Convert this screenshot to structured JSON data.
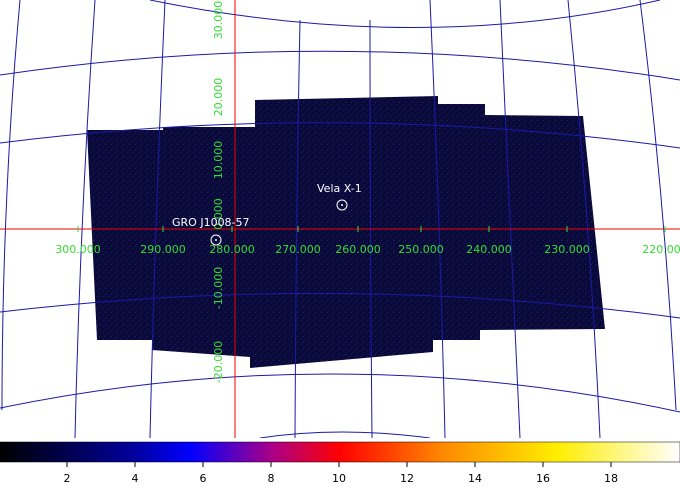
{
  "image": {
    "ra_labels": [
      "300.000",
      "290.000",
      "280.000",
      "270.000",
      "260.000",
      "250.000",
      "240.000",
      "230.000",
      "220.000"
    ],
    "dec_labels": [
      "30.000",
      "20.000",
      "10.000",
      "0.000",
      "-10.000",
      "-20.000"
    ],
    "sources": [
      "Vela X-1",
      "GRO J1008-57"
    ]
  },
  "colorbar": {
    "ticks": [
      "2",
      "4",
      "6",
      "8",
      "10",
      "12",
      "14",
      "16",
      "18"
    ]
  }
}
